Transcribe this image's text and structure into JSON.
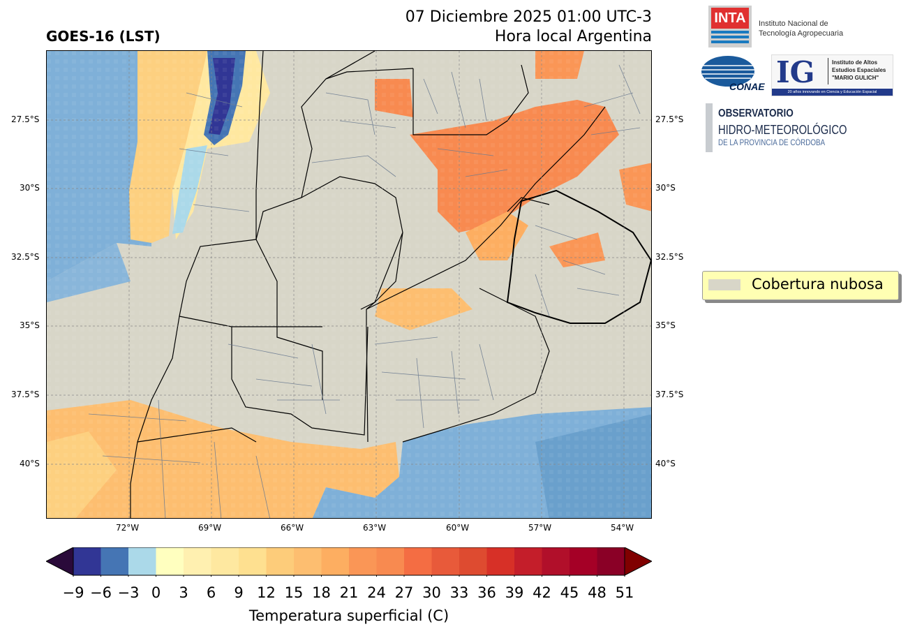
{
  "header": {
    "title": "GOES-16 (LST)",
    "date_line": "07 Diciembre 2025 01:00 UTC-3",
    "local_line": "Hora local Argentina"
  },
  "map": {
    "lat_ticks_left": [
      "27.5°S",
      "30°S",
      "32.5°S",
      "35°S",
      "37.5°S",
      "40°S"
    ],
    "lat_ticks_right": [
      "27.5°S",
      "30°S",
      "32.5°S",
      "35°S",
      "37.5°S",
      "40°S"
    ],
    "lon_ticks": [
      "72°W",
      "69°W",
      "66°W",
      "63°W",
      "60°W",
      "57°W",
      "54°W"
    ],
    "cloud_color": "#d8d6c8",
    "ocean_color": "#7fb0d8"
  },
  "legend": {
    "label": "Cobertura nubosa"
  },
  "colorbar": {
    "label": "Temperatura superficial (C)",
    "ticks": [
      "−9",
      "−6",
      "−3",
      "0",
      "3",
      "6",
      "9",
      "12",
      "15",
      "18",
      "21",
      "24",
      "27",
      "30",
      "33",
      "36",
      "39",
      "42",
      "45",
      "48",
      "51"
    ],
    "colors": [
      "#313695",
      "#4575b4",
      "#abd9e9",
      "#ffffbf",
      "#fff0b0",
      "#fee8a0",
      "#fee090",
      "#fdcc7a",
      "#fdbe70",
      "#fdae61",
      "#fa9656",
      "#f88a50",
      "#f46d43",
      "#e85a3a",
      "#de4b30",
      "#d73027",
      "#c41e2a",
      "#b10f2a",
      "#a50026",
      "#8a0026"
    ],
    "under_color": "#2a0a3a",
    "over_color": "#800000"
  },
  "logos": {
    "inta_name": "INTA",
    "inta_line1": "Instituto Nacional de",
    "inta_line2": "Tecnología Agropecuaria",
    "conae_name": "CONAE",
    "ig_name": "IG",
    "ig_line1": "Instituto de Altos",
    "ig_line2": "Estudios Espaciales",
    "ig_line3": "\"MARIO GULICH\"",
    "ig_footer": "20 años innovando en Ciencia y Educación Espacial",
    "obs_line1": "OBSERVATORIO",
    "obs_line2": "HIDRO-METEOROLÓGICO",
    "obs_line3": "DE LA PROVINCIA DE CÓRDOBA"
  }
}
